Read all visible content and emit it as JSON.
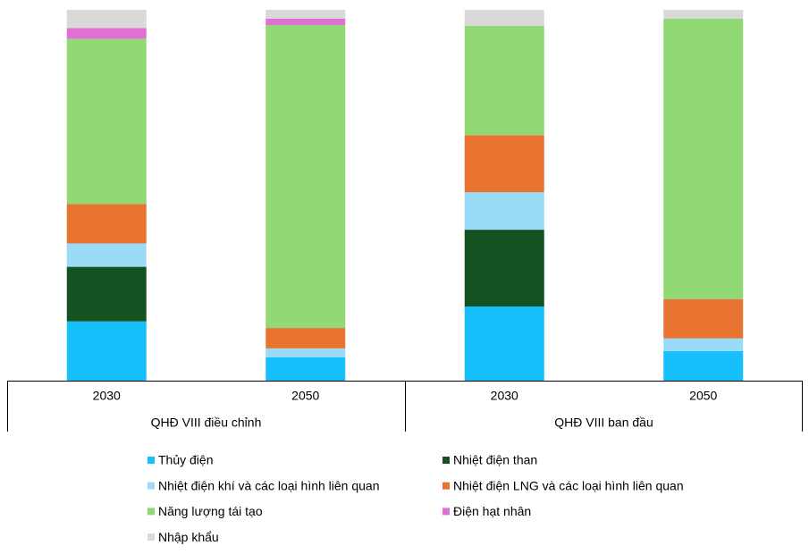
{
  "chart_data": {
    "type": "stacked-bar",
    "groups": [
      {
        "name": "QHĐ VIII điều chỉnh",
        "categories": [
          "2030",
          "2050"
        ]
      },
      {
        "name": "QHĐ VIII ban đầu",
        "categories": [
          "2030",
          "2050"
        ]
      }
    ],
    "ylim": [
      0,
      100
    ],
    "series": [
      {
        "name": "Thủy điện",
        "color": "#17c0fa",
        "values": [
          16,
          6.3,
          20,
          8
        ]
      },
      {
        "name": "Nhiệt điện than",
        "color": "#145221",
        "values": [
          14.7,
          0,
          20.7,
          0
        ]
      },
      {
        "name": "Nhiệt điện khí và các loại hình liên quan",
        "color": "#9adcf7",
        "values": [
          6.3,
          2.4,
          10.1,
          3.4
        ]
      },
      {
        "name": "Nhiệt điện LNG và các loại hình liên quan",
        "color": "#e97432",
        "values": [
          10.6,
          5.5,
          15.4,
          10.6
        ]
      },
      {
        "name": "Năng lượng tái tạo",
        "color": "#90d974",
        "values": [
          44.6,
          81.7,
          29.5,
          75.6
        ]
      },
      {
        "name": "Điện hạt nhân",
        "color": "#e070d4",
        "values": [
          2.9,
          1.7,
          0,
          0
        ]
      },
      {
        "name": "Nhập khẩu",
        "color": "#d9d9d9",
        "values": [
          4.9,
          2.4,
          4.3,
          2.4
        ]
      }
    ]
  }
}
